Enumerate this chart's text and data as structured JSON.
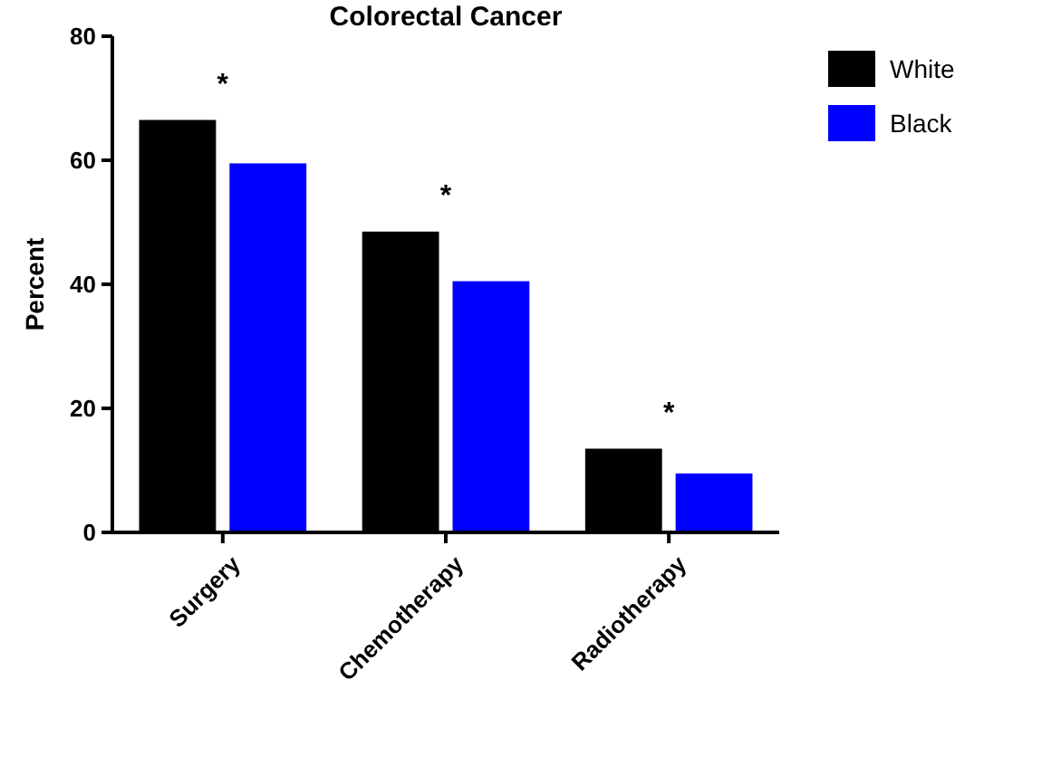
{
  "chart_data": {
    "type": "bar",
    "title": "Colorectal Cancer",
    "ylabel": "Percent",
    "categories": [
      "Surgery",
      "Chemotherapy",
      "Radiotherapy"
    ],
    "series": [
      {
        "name": "White",
        "color": "#000000",
        "values": [
          66.5,
          48.5,
          13.5
        ]
      },
      {
        "name": "Black",
        "color": "#0000ff",
        "values": [
          59.5,
          40.5,
          9.5
        ]
      }
    ],
    "ylim": [
      0,
      80
    ],
    "yticks": [
      0,
      20,
      40,
      60,
      80
    ],
    "grid": false,
    "legend": "top right",
    "annotations": [
      "*",
      "*",
      "*"
    ]
  }
}
